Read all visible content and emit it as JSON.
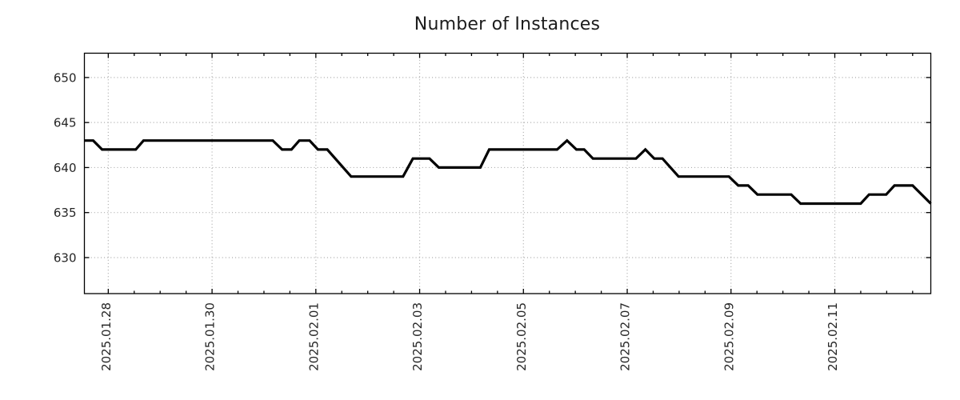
{
  "title": "Number of Instances",
  "colors": {
    "line": "#000000",
    "grid": "#a9a9a9",
    "axis": "#000000",
    "text": "#262626",
    "background": "#ffffff"
  },
  "chart_data": {
    "type": "line",
    "title": "Number of Instances",
    "xlabel": "",
    "ylabel": "",
    "grid": "dotted",
    "legend": "none",
    "x_axis": {
      "unit": "date",
      "tick_labels": [
        "2025.01.28",
        "2025.01.30",
        "2025.02.01",
        "2025.02.03",
        "2025.02.05",
        "2025.02.07",
        "2025.02.09",
        "2025.02.11"
      ],
      "tick_positions_days": [
        0,
        2,
        4,
        6,
        8,
        10,
        12,
        14
      ],
      "minor_tick_step_days": 0.5,
      "range_days": [
        -0.46,
        15.85
      ]
    },
    "y_axis": {
      "tick_labels": [
        "630",
        "635",
        "640",
        "645",
        "650"
      ],
      "tick_values": [
        630,
        635,
        640,
        645,
        650
      ],
      "range": [
        626.0,
        652.7
      ]
    },
    "series": [
      {
        "name": "instances",
        "color": "#000000",
        "points_day_value": [
          [
            -0.46,
            643
          ],
          [
            -0.29,
            643
          ],
          [
            -0.12,
            642
          ],
          [
            0.53,
            642
          ],
          [
            0.68,
            643
          ],
          [
            3.17,
            643
          ],
          [
            3.35,
            642
          ],
          [
            3.53,
            642
          ],
          [
            3.68,
            643
          ],
          [
            3.88,
            643
          ],
          [
            4.04,
            642
          ],
          [
            4.22,
            642
          ],
          [
            4.68,
            639
          ],
          [
            5.68,
            639
          ],
          [
            5.87,
            641
          ],
          [
            6.19,
            641
          ],
          [
            6.37,
            640
          ],
          [
            7.17,
            640
          ],
          [
            7.34,
            642
          ],
          [
            8.65,
            642
          ],
          [
            8.84,
            643
          ],
          [
            9.02,
            642
          ],
          [
            9.17,
            642
          ],
          [
            9.34,
            641
          ],
          [
            10.17,
            641
          ],
          [
            10.35,
            642
          ],
          [
            10.52,
            641
          ],
          [
            10.68,
            641
          ],
          [
            10.99,
            639
          ],
          [
            11.96,
            639
          ],
          [
            12.14,
            638
          ],
          [
            12.33,
            638
          ],
          [
            12.51,
            637
          ],
          [
            13.16,
            637
          ],
          [
            13.34,
            636
          ],
          [
            14.5,
            636
          ],
          [
            14.66,
            637
          ],
          [
            14.99,
            637
          ],
          [
            15.15,
            638
          ],
          [
            15.5,
            638
          ],
          [
            15.85,
            636
          ]
        ]
      }
    ]
  }
}
